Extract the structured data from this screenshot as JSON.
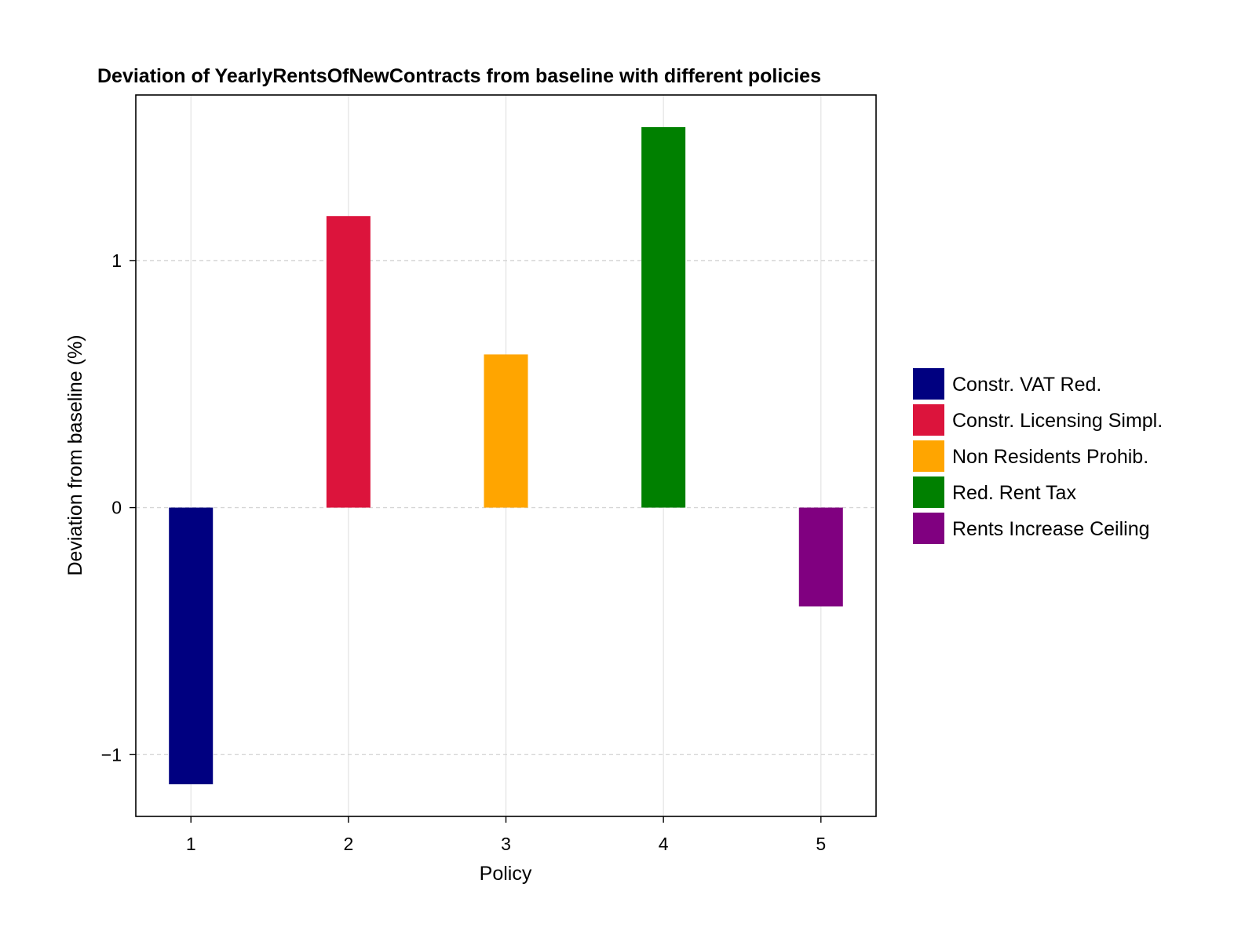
{
  "chart_data": {
    "type": "bar",
    "title": "Deviation of YearlyRentsOfNewContracts from baseline with different policies",
    "xlabel": "Policy",
    "ylabel": "Deviation from baseline (%)",
    "categories": [
      "1",
      "2",
      "3",
      "4",
      "5"
    ],
    "values": [
      -1.12,
      1.18,
      0.62,
      1.54,
      -0.4
    ],
    "yticks": [
      -1,
      0,
      1
    ],
    "ytick_labels": [
      "−1",
      "0",
      "1"
    ],
    "ylim": [
      -1.25,
      1.67
    ],
    "xlim": [
      0.65,
      5.35
    ],
    "grid": true,
    "legend_position": "right",
    "series": [
      {
        "name": "Constr. VAT Red.",
        "color": "#000080"
      },
      {
        "name": "Constr. Licensing Simpl.",
        "color": "#DC143C"
      },
      {
        "name": "Non Residents Prohib.",
        "color": "#FFA500"
      },
      {
        "name": "Red. Rent Tax",
        "color": "#008000"
      },
      {
        "name": "Rents Increase Ceiling",
        "color": "#800080"
      }
    ]
  }
}
